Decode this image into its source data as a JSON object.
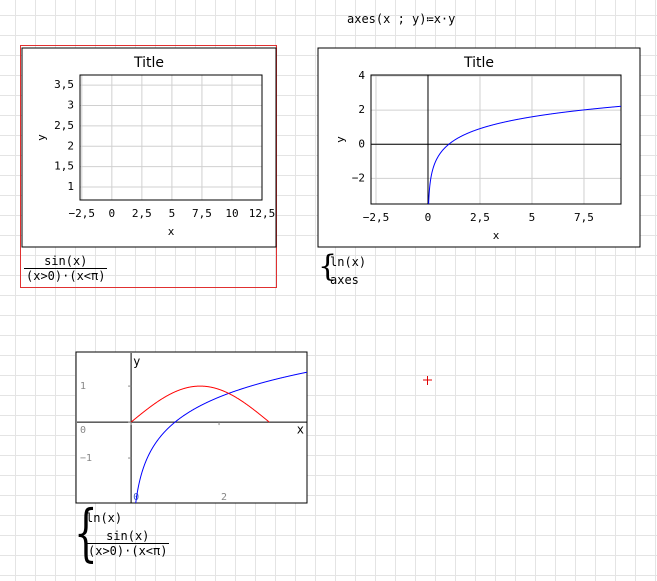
{
  "formula": "axes(x ; y)≔x·y",
  "plots": [
    {
      "title": "Title",
      "xlabel": "x",
      "ylabel": "y",
      "grid": true,
      "axes_lines": false,
      "xlim": [
        -2.65,
        12.5
      ],
      "ylim": [
        0.68,
        3.75
      ],
      "xticks": [
        {
          "value": -2.5,
          "label": "−2,5"
        },
        0,
        {
          "value": 2.5,
          "label": "2,5"
        },
        5,
        {
          "value": 7.5,
          "label": "7,5"
        },
        10,
        {
          "value": 12.5,
          "label": "12,5"
        }
      ],
      "yticks": [
        1,
        {
          "value": 1.5,
          "label": "1,5"
        },
        2,
        {
          "value": 2.5,
          "label": "2,5"
        },
        3,
        {
          "value": 3.5,
          "label": "3,5"
        }
      ],
      "curve_colors": [],
      "numerator": "sin(x)",
      "denominator": "(x>0)·(x<π)"
    },
    {
      "title": "Title",
      "xlabel": "x",
      "ylabel": "y",
      "grid": true,
      "axes_lines": true,
      "xlim": [
        -2.74,
        9.28
      ],
      "ylim": [
        -3.5,
        4.06
      ],
      "xticks": [
        {
          "value": -2.5,
          "label": "−2,5"
        },
        0,
        {
          "value": 2.5,
          "label": "2,5"
        },
        5,
        {
          "value": 7.5,
          "label": "7,5"
        }
      ],
      "yticks": [
        {
          "value": -2,
          "label": "−2"
        },
        0,
        2,
        4
      ],
      "curve_colors": [
        "#0000ff"
      ],
      "system": [
        "ln(x)",
        "axes"
      ]
    },
    {
      "xlabel": "x",
      "ylabel": "y",
      "grid": false,
      "axes_lines": true,
      "xlim": [
        -1.23,
        4.0
      ],
      "ylim": [
        -2.25,
        1.92
      ],
      "xticks": [
        0,
        2
      ],
      "yticks": [
        {
          "value": -1,
          "label": "−1"
        },
        0,
        1
      ],
      "curve_colors": [
        "#0000ff",
        "#ff0000"
      ],
      "system": [
        "ln(x)"
      ],
      "numerator": "sin(x)",
      "denominator": "(x>0)·(x<π)"
    }
  ]
}
